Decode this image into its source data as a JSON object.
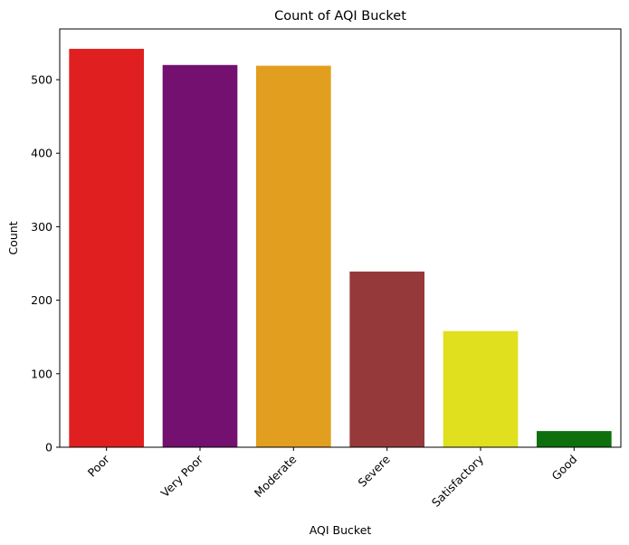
{
  "chart_data": {
    "type": "bar",
    "title": "Count of AQI Bucket",
    "xlabel": "AQI Bucket",
    "ylabel": "Count",
    "categories": [
      "Poor",
      "Very Poor",
      "Moderate",
      "Severe",
      "Satisfactory",
      "Good"
    ],
    "values": [
      542,
      520,
      519,
      239,
      158,
      22
    ],
    "colors": [
      "#e02020",
      "#731070",
      "#e29e1e",
      "#96393a",
      "#e0e01e",
      "#0d700d"
    ],
    "ylim": [
      0,
      569
    ],
    "yticks": [
      0,
      100,
      200,
      300,
      400,
      500
    ],
    "grid": false,
    "legend": "none"
  }
}
